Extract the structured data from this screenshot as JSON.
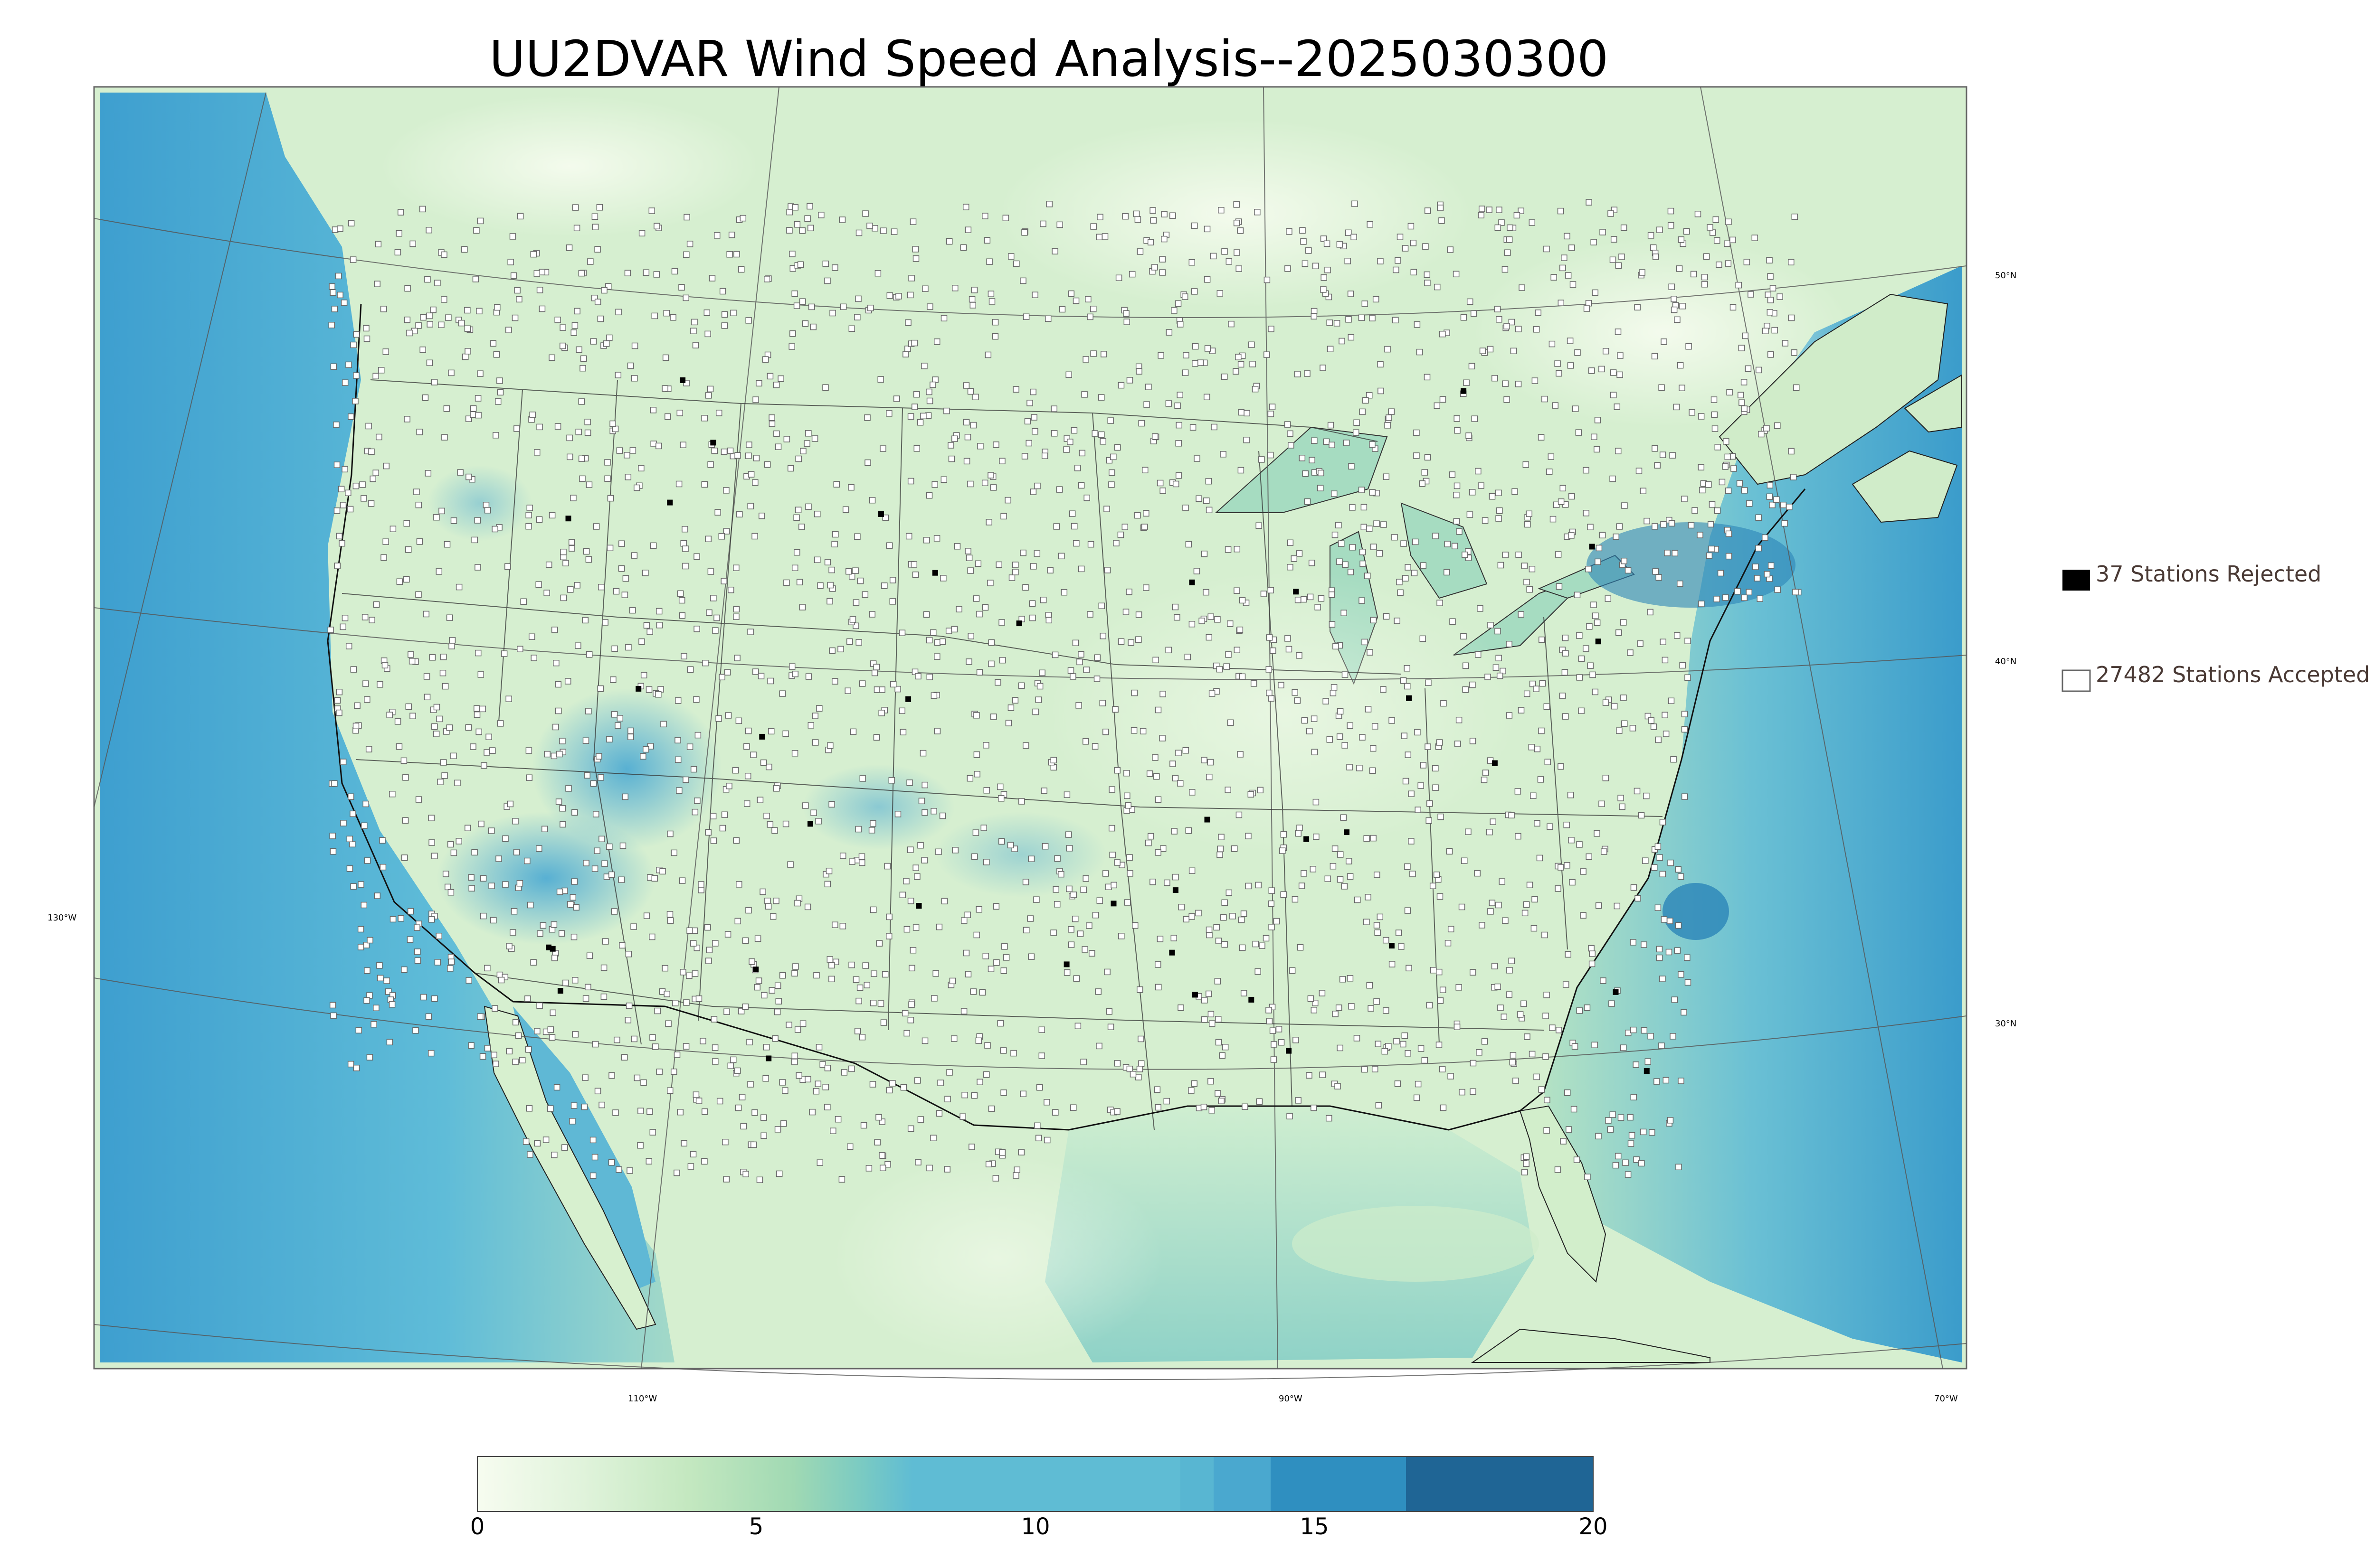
{
  "title": "UU2DVAR Wind Speed Analysis--2025030300",
  "legend": {
    "rejected_label": "37 Stations Rejected",
    "accepted_label": "27482 Stations Accepted"
  },
  "latitude_labels": [
    "50°N",
    "40°N",
    "30°N"
  ],
  "longitude_labels": [
    "130°W",
    "110°W",
    "90°W",
    "70°W"
  ],
  "colorbar": {
    "min": 0,
    "max": 20,
    "ticks": [
      "0",
      "5",
      "10",
      "15",
      "20"
    ],
    "colors": [
      "#f7fcf0",
      "#e0f3db",
      "#ccebc5",
      "#a8ddb5",
      "#7bccc4",
      "#4eb3d3",
      "#2b8cbe",
      "#1a6496"
    ]
  },
  "colors": {
    "land_base": "#d9f0d3",
    "ocean": "#5bb5d8",
    "rejected_marker": "#000000",
    "accepted_marker": "#ffffff",
    "station_outline": "#555555"
  }
}
